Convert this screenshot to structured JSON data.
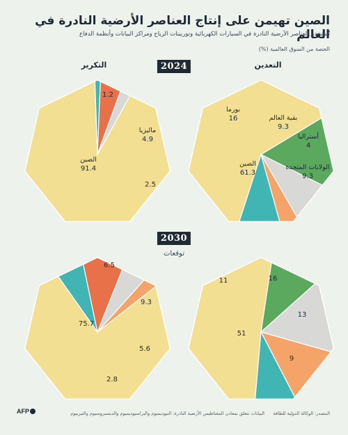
{
  "header": {
    "title": "الصين تهيمن على إنتاج العناصر الأرضية النادرة في العالم",
    "subtitle": "تُستخدم العناصر الأرضية النادرة في السيارات الكهربائية وتوربينات الرياح ومراكز البيانات وأنظمة الدفاع",
    "unit": "الحصة من السوق العالمية (%)"
  },
  "columns": {
    "refining": "التكرير",
    "mining": "التعدين"
  },
  "years": {
    "current": "2024",
    "future": "2030"
  },
  "forecast_label": "توقعات",
  "footer": {
    "source": "المصدر: الوكالة الدولية للطاقة",
    "note": "البيانات تتعلق بمعادن المغناطيس الأرضية النادرة: النيوديميوم والبراسيوديميوم والديسبروسيوم والتيربيوم",
    "logo": "AFP"
  },
  "colors": {
    "china": "#f3df92",
    "myanmar": "#5aa95e",
    "rest_of_world": "#d8d9d6",
    "australia": "#f4a468",
    "usa": "#40b5b3",
    "malaysia": "#e8714a"
  },
  "chart_data": [
    {
      "type": "pie",
      "title": "التعدين 2024",
      "segments": [
        {
          "name": "الصين",
          "value": 61.3,
          "color": "#f3df92"
        },
        {
          "name": "بورما",
          "value": 16,
          "color": "#5aa95e"
        },
        {
          "name": "بقية العالم",
          "value": 9.3,
          "color": "#d8d9d6"
        },
        {
          "name": "أستراليا",
          "value": 4,
          "color": "#f4a468"
        },
        {
          "name": "الولايات المتحدة",
          "value": 9.3,
          "color": "#40b5b3"
        }
      ]
    },
    {
      "type": "pie",
      "title": "التكرير 2024",
      "segments": [
        {
          "name": "الصين",
          "value": 91.4,
          "color": "#f3df92"
        },
        {
          "name": "",
          "value": 1.2,
          "color": "#40b5b3"
        },
        {
          "name": "ماليزيا",
          "value": 4.9,
          "color": "#e8714a"
        },
        {
          "name": "",
          "value": 2.5,
          "color": "#d8d9d6"
        }
      ]
    },
    {
      "type": "pie",
      "title": "التعدين 2030",
      "segments": [
        {
          "name": "",
          "value": 51,
          "color": "#f3df92"
        },
        {
          "name": "",
          "value": 11,
          "color": "#5aa95e"
        },
        {
          "name": "",
          "value": 16,
          "color": "#d8d9d6"
        },
        {
          "name": "",
          "value": 13,
          "color": "#f4a468"
        },
        {
          "name": "",
          "value": 9,
          "color": "#40b5b3"
        }
      ]
    },
    {
      "type": "pie",
      "title": "التكرير 2030",
      "segments": [
        {
          "name": "",
          "value": 75.7,
          "color": "#f3df92"
        },
        {
          "name": "",
          "value": 6.5,
          "color": "#40b5b3"
        },
        {
          "name": "",
          "value": 9.3,
          "color": "#e8714a"
        },
        {
          "name": "",
          "value": 5.6,
          "color": "#d8d9d6"
        },
        {
          "name": "",
          "value": 2.8,
          "color": "#f4a468"
        }
      ]
    }
  ]
}
